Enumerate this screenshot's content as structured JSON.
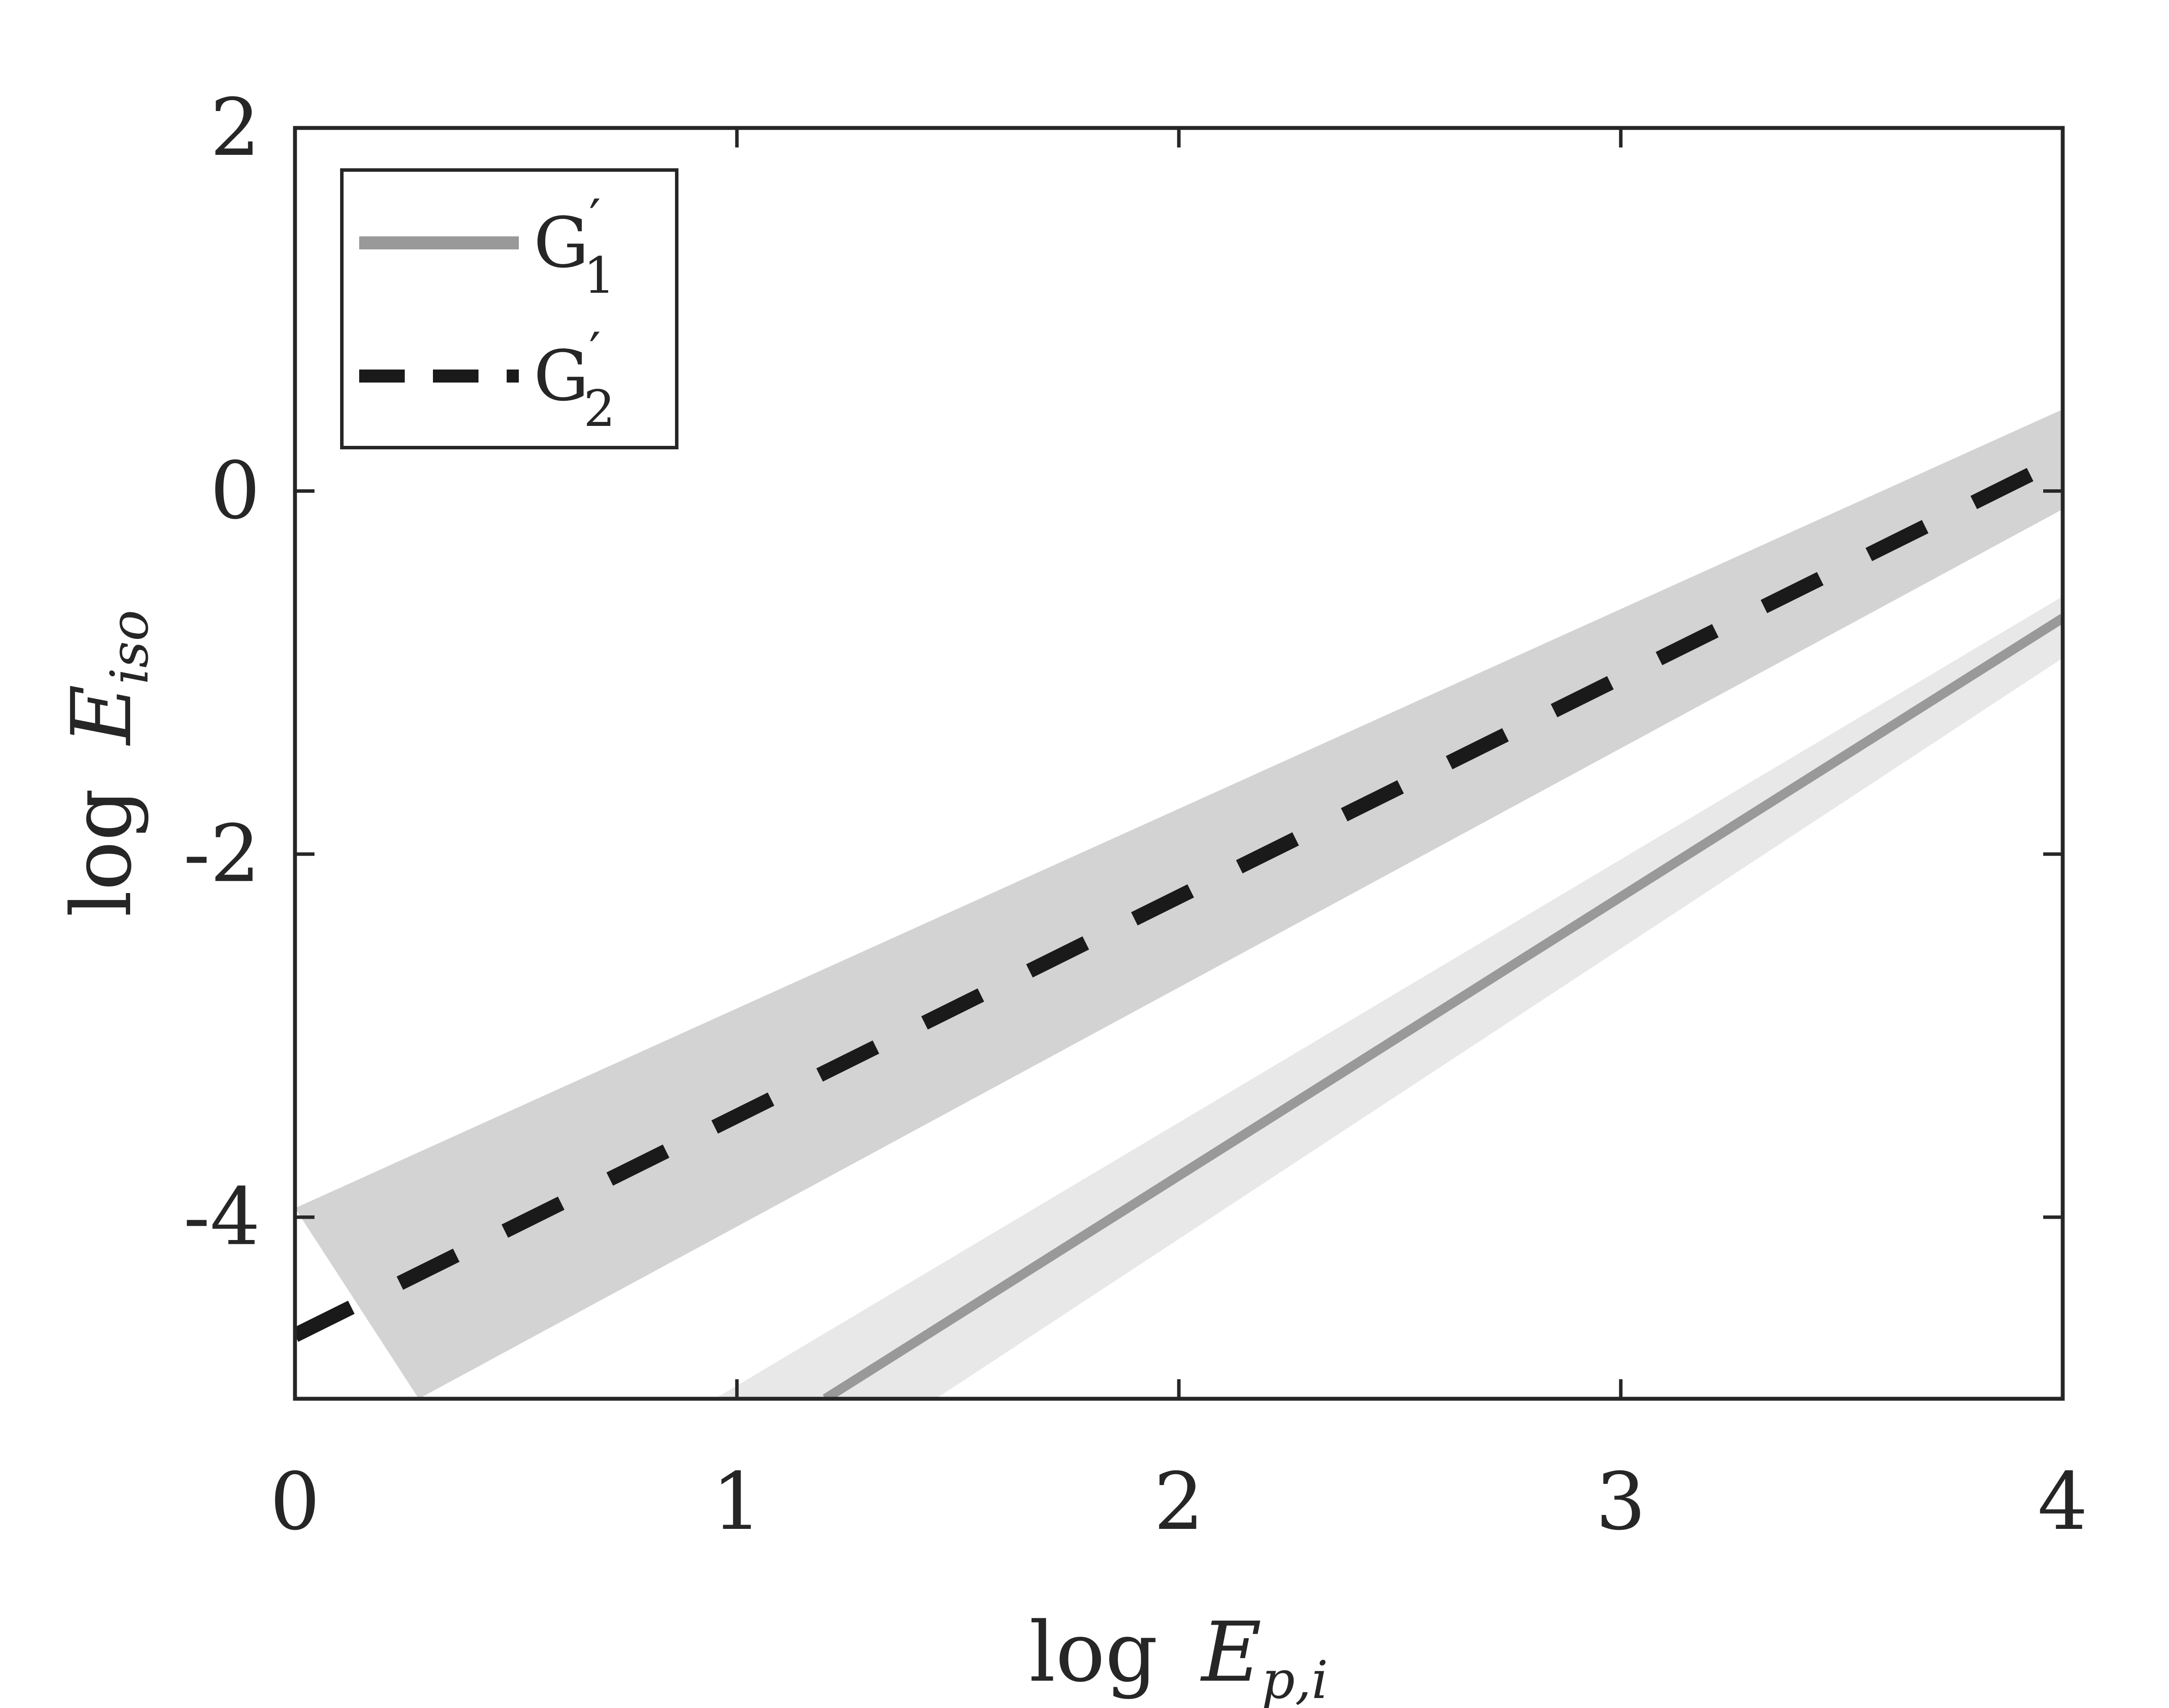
{
  "chart_data": {
    "type": "line",
    "xlabel": {
      "prefix": "log",
      "var": "E",
      "sub": "p,i"
    },
    "ylabel": {
      "prefix": "log",
      "var": "E",
      "sub": "iso"
    },
    "xlim": [
      0,
      4
    ],
    "ylim": [
      -5,
      2
    ],
    "xticks": [
      0,
      1,
      2,
      3,
      4
    ],
    "xtick_labels": [
      "0",
      "1",
      "2",
      "3",
      "4"
    ],
    "yticks": [
      -4,
      -2,
      0,
      2
    ],
    "ytick_labels": [
      "-4",
      "-2",
      "0",
      "2"
    ],
    "grid": false,
    "legend_position": "top-left",
    "series": [
      {
        "name": "G1",
        "legend": {
          "base": "G",
          "prime": "′",
          "sub": "1"
        },
        "style": "solid",
        "color": "#999999",
        "band_color": "#e8e8e8",
        "x": [
          1.2,
          4.0
        ],
        "y": [
          -5.0,
          -0.7
        ],
        "band": {
          "x": [
            0.95,
            4.0
          ],
          "upper": [
            -5.0,
            -0.58
          ],
          "lower_x": [
            1.45,
            4.0
          ],
          "lower": [
            -5.0,
            -0.92
          ]
        }
      },
      {
        "name": "G2",
        "legend": {
          "base": "G",
          "prime": "′",
          "sub": "2"
        },
        "style": "dashed",
        "color": "#1a1a1a",
        "band_color": "#d3d3d3",
        "x": [
          0.0,
          4.0
        ],
        "y": [
          -4.65,
          0.18
        ],
        "band": {
          "x": [
            0.0,
            4.0
          ],
          "upper": [
            -3.95,
            0.45
          ],
          "lower_x": [
            0.28,
            4.0
          ],
          "lower": [
            -5.0,
            -0.1
          ]
        }
      }
    ]
  }
}
